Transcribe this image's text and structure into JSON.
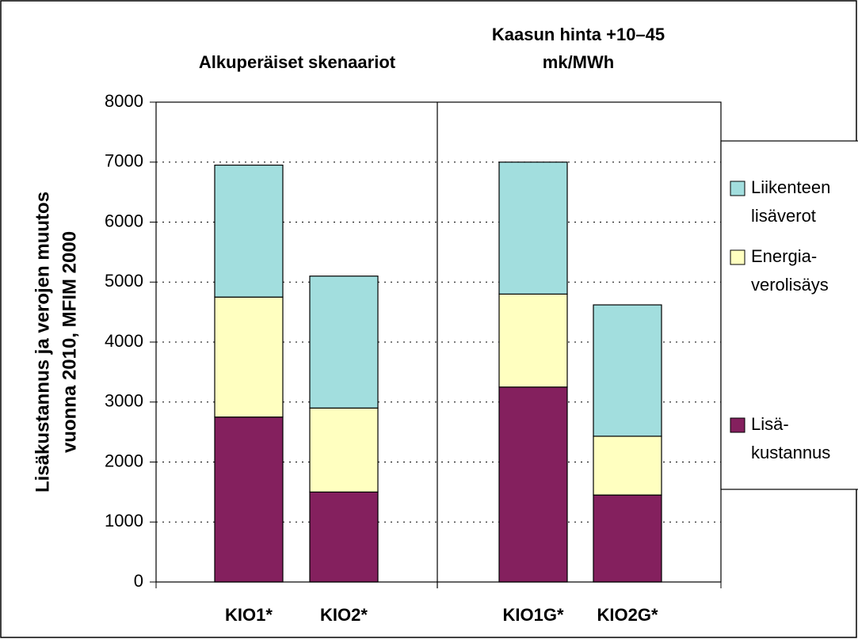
{
  "chart_data": {
    "type": "stacked_bar",
    "y_label": [
      "Lisäkustannus ja verojen muutos",
      "vuonna 2010, MFIM 2000"
    ],
    "groups": [
      {
        "label": [
          "Alkuperäiset skenaariot"
        ]
      },
      {
        "label": [
          "Kaasun hinta +10–45",
          "mk/MWh"
        ]
      }
    ],
    "categories": [
      "KIO1*",
      "KIO2*",
      "KIO1G*",
      "KIO2G*"
    ],
    "series": [
      {
        "name": [
          "Lisä-",
          "kustannus"
        ],
        "color": "#84205e",
        "values": [
          2750,
          1500,
          3250,
          1450
        ]
      },
      {
        "name": [
          "Energia-",
          "verolisäys"
        ],
        "color": "#ffffc0",
        "values": [
          2000,
          1400,
          1550,
          980
        ]
      },
      {
        "name": [
          "Liikenteen",
          "lisäverot"
        ],
        "color": "#a2dede",
        "values": [
          2200,
          2200,
          2200,
          2190
        ]
      }
    ],
    "ylim": [
      0,
      8000
    ],
    "yticks": [
      0,
      1000,
      2000,
      3000,
      4000,
      5000,
      6000,
      7000,
      8000
    ],
    "grid": true
  }
}
